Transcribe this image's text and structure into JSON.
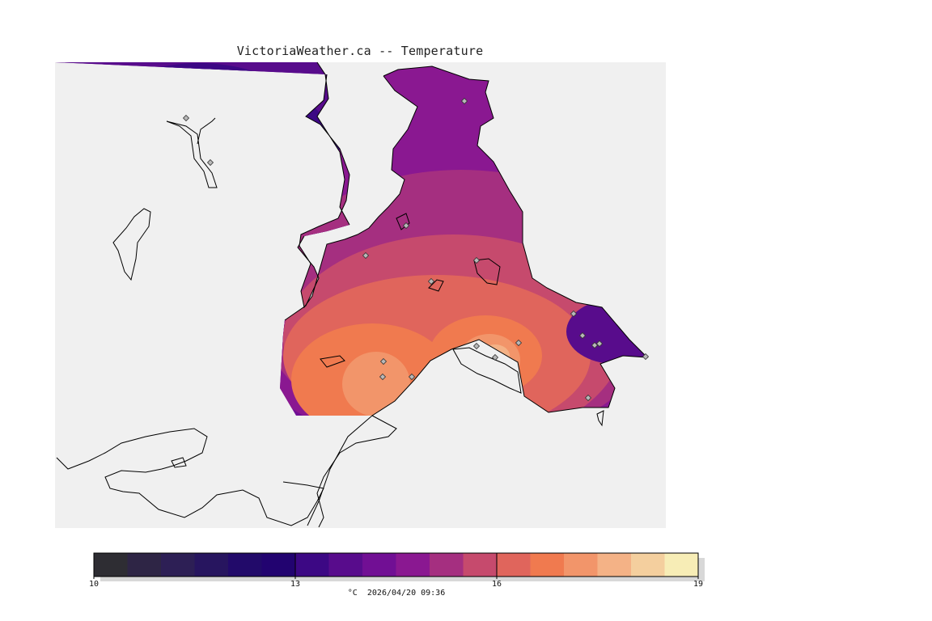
{
  "title": "VictoriaWeather.ca -- Temperature",
  "legend": {
    "unit": "°C",
    "timestamp": "2026/04/20 09:36",
    "min": 10,
    "max": 19,
    "tick_labels": [
      "10",
      "13",
      "16",
      "19"
    ],
    "colors": [
      "#2e2d33",
      "#2e2545",
      "#2d1f55",
      "#27155f",
      "#220a6a",
      "#220370",
      "#3c0884",
      "#580c8c",
      "#710f94",
      "#8a1891",
      "#a52f80",
      "#c64a6d",
      "#e0655c",
      "#f07a4f",
      "#f2956a",
      "#f4b286",
      "#f4cf9e",
      "#f7edb6"
    ]
  },
  "map": {
    "background_color": "#f0f0f0",
    "land_fill_color": "#ffffff",
    "outline_color": "#000000",
    "marker_color": "#b8b8b8",
    "station_marker_icon": "diamond-marker-icon",
    "station_count": 19
  }
}
